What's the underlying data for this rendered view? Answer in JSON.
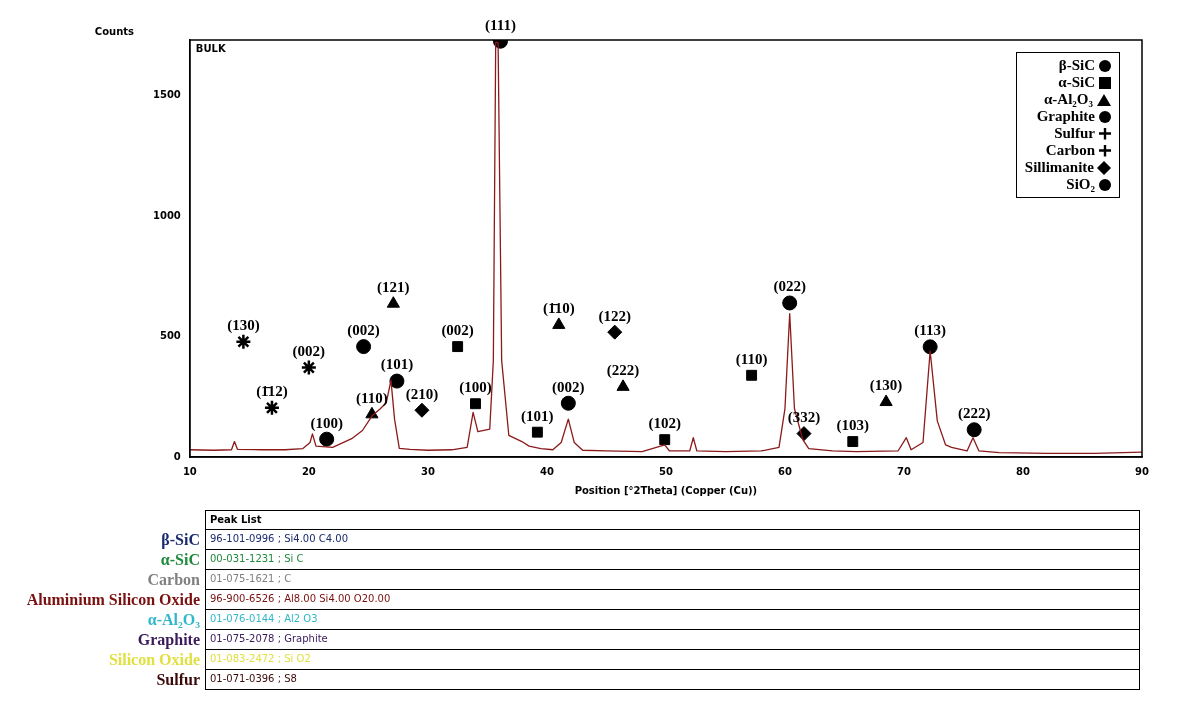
{
  "chart_data": [
    {
      "type": "line",
      "ylabel": "Counts",
      "xlabel": "Position [°2Theta] (Copper (Cu))",
      "xlim": [
        10,
        90
      ],
      "xticks": [
        10,
        20,
        30,
        40,
        50,
        60,
        70,
        80,
        90
      ],
      "ylim": [
        0,
        1730
      ],
      "yticks": [
        0,
        500,
        1000,
        1500
      ],
      "grid": false,
      "legend": "top right",
      "series": [
        {
          "type": "line",
          "color": "#8b1a1a",
          "x": [
            10,
            12,
            13.5,
            13.75,
            14,
            16,
            18,
            19.5,
            20.1,
            20.3,
            20.6,
            22,
            23.6,
            24.5,
            25.3,
            26,
            26.5,
            26.9,
            27.2,
            27.6,
            28.5,
            30,
            32,
            33.3,
            33.8,
            34.2,
            35.2,
            35.5,
            35.7,
            35.9,
            36.2,
            36.8,
            37.9,
            38.5,
            39.5,
            40.5,
            41.2,
            41.8,
            42.3,
            43,
            45,
            48,
            49.9,
            50.3,
            52,
            52.3,
            52.6,
            55,
            58,
            59.5,
            60,
            60.4,
            60.8,
            61.5,
            62,
            64,
            66,
            69.5,
            70.2,
            70.6,
            71.6,
            72.2,
            72.8,
            73.5,
            74,
            75.3,
            75.8,
            76.3,
            78,
            82,
            86,
            90
          ],
          "values": [
            30,
            28,
            30,
            64,
            32,
            30,
            30,
            35,
            60,
            96,
            45,
            40,
            76,
            110,
            170,
            200,
            225,
            318,
            157,
            36,
            32,
            28,
            30,
            40,
            185,
            105,
            116,
            400,
            1720,
            1720,
            400,
            90,
            64,
            45,
            35,
            30,
            60,
            157,
            60,
            28,
            25,
            22,
            50,
            25,
            25,
            80,
            25,
            22,
            25,
            40,
            200,
            595,
            200,
            72,
            35,
            25,
            22,
            25,
            80,
            30,
            60,
            440,
            150,
            50,
            40,
            25,
            80,
            25,
            18,
            15,
            15,
            20
          ]
        },
        {
          "type": "scatter",
          "name": "β-SiC",
          "color": "#000000",
          "marker": "circle",
          "x": [
            36.1,
            41.8,
            60.4,
            72.2,
            75.9
          ],
          "values": [
            1725,
            223,
            639,
            457,
            113
          ]
        },
        {
          "type": "scatter",
          "name": "α-SiC",
          "color": "#000000",
          "marker": "square",
          "x": [
            32.5,
            34.0,
            39.2,
            49.9,
            57.2,
            65.7
          ],
          "values": [
            458,
            221,
            103,
            72,
            339,
            64
          ]
        },
        {
          "type": "scatter",
          "name": "α-Al₂O₃",
          "color": "#000000",
          "marker": "triangle",
          "x": [
            27.1,
            25.3,
            41.0,
            46.4,
            68.5
          ],
          "values": [
            636,
            177,
            548,
            291,
            228
          ]
        },
        {
          "type": "scatter",
          "name": "Graphite",
          "color": "#000000",
          "marker": "circle",
          "x": [
            24.6
          ],
          "values": [
            458
          ]
        },
        {
          "type": "scatter",
          "name": "Sulfur",
          "color": "#000000",
          "marker": "cross",
          "x": [
            14.5,
            16.9
          ],
          "values": [
            478,
            204
          ]
        },
        {
          "type": "scatter",
          "name": "Carbon",
          "color": "#000000",
          "marker": "cross",
          "x": [
            20.0
          ],
          "values": [
            371
          ]
        },
        {
          "type": "scatter",
          "name": "Sillimanite",
          "color": "#000000",
          "marker": "diamond",
          "x": [
            29.5,
            45.7,
            61.6
          ],
          "values": [
            194,
            518,
            97
          ]
        },
        {
          "type": "scatter",
          "name": "SiO₂",
          "color": "#000000",
          "marker": "circle",
          "x": [
            21.5,
            27.4
          ],
          "values": [
            74,
            315
          ]
        }
      ],
      "annotations": [
        "BULK",
        {
          "text": "(111)",
          "x": 36.1,
          "y": 1725
        },
        {
          "text": "(130)",
          "x": 14.5,
          "y": 478
        },
        {
          "text": "(1̄12)",
          "x": 16.9,
          "y": 204
        },
        {
          "text": "(100)",
          "x": 21.5,
          "y": 74
        },
        {
          "text": "(002)",
          "x": 20.0,
          "y": 371
        },
        {
          "text": "(002)",
          "x": 24.6,
          "y": 458
        },
        {
          "text": "(101)",
          "x": 27.4,
          "y": 315
        },
        {
          "text": "(110)",
          "x": 25.3,
          "y": 177
        },
        {
          "text": "(210)",
          "x": 29.5,
          "y": 194
        },
        {
          "text": "(121)",
          "x": 27.1,
          "y": 636
        },
        {
          "text": "(002)",
          "x": 32.5,
          "y": 458
        },
        {
          "text": "(100)",
          "x": 34.0,
          "y": 221
        },
        {
          "text": "(101)",
          "x": 39.2,
          "y": 103
        },
        {
          "text": "(1̄10)",
          "x": 41.0,
          "y": 548
        },
        {
          "text": "(002)",
          "x": 41.8,
          "y": 223
        },
        {
          "text": "(122)",
          "x": 45.7,
          "y": 518
        },
        {
          "text": "(222)",
          "x": 46.4,
          "y": 291
        },
        {
          "text": "(102)",
          "x": 49.9,
          "y": 72
        },
        {
          "text": "(110)",
          "x": 57.2,
          "y": 339
        },
        {
          "text": "(022)",
          "x": 60.4,
          "y": 639
        },
        {
          "text": "(332)",
          "x": 61.6,
          "y": 97
        },
        {
          "text": "(103)",
          "x": 65.7,
          "y": 64
        },
        {
          "text": "(130)",
          "x": 68.5,
          "y": 228
        },
        {
          "text": "(113)",
          "x": 72.2,
          "y": 457
        },
        {
          "text": "(222)",
          "x": 75.9,
          "y": 113
        }
      ]
    },
    {
      "type": "other",
      "title": "Peak List",
      "categories": [
        "β-SiC",
        "α-SiC",
        "Carbon",
        "Aluminium Silicon Oxide",
        "α-Al₂O₃",
        "Graphite",
        "Silicon Oxide",
        "Sulfur"
      ],
      "colors": [
        "#1a2a6e",
        "#1e8a3c",
        "#808080",
        "#7a1010",
        "#30b8c8",
        "#3a1a5a",
        "#e0e040",
        "#3a0a0a"
      ],
      "annotations": [
        "96-101-0996 ; Si4.00 C4.00",
        "00-031-1231 ; Si C",
        "01-075-1621 ; C",
        "96-900-6526 ; Al8.00 Si4.00 O20.00",
        "01-076-0144 ; Al2 O3",
        "01-075-2078 ; Graphite",
        "01-083-2472 ; Si O2",
        "01-071-0396 ; S8"
      ]
    }
  ]
}
